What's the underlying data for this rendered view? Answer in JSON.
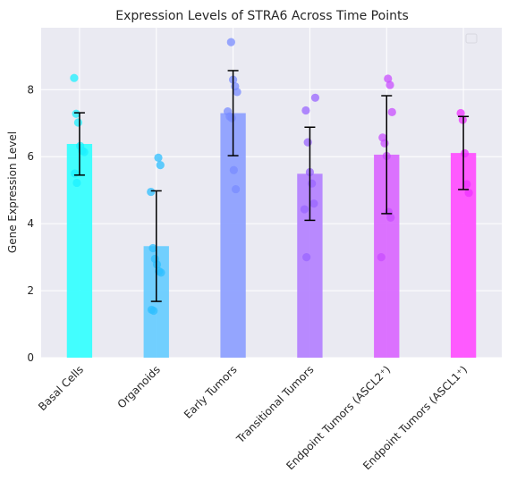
{
  "chart_data": {
    "type": "bar",
    "title": "Expression Levels of STRA6 Across Time Points",
    "xlabel": "",
    "ylabel": "Gene Expression Level",
    "ylim": [
      0,
      9.85
    ],
    "yticks": [
      0,
      2,
      4,
      6,
      8
    ],
    "grid": true,
    "legend": {
      "placement": "top-right",
      "entries": []
    },
    "categories": [
      "Basal Cells",
      "Organoids",
      "Early Tumors",
      "Transitional Tumors",
      "Endpoint Tumors (ASCL2⁺)",
      "Endpoint Tumors (ASCL1⁺)"
    ],
    "values": [
      6.38,
      3.33,
      7.3,
      5.49,
      6.06,
      6.11
    ],
    "error": [
      0.93,
      1.65,
      1.27,
      1.39,
      1.76,
      1.09
    ],
    "colors": [
      "#33ffff",
      "#66ccff",
      "#8c9eff",
      "#b380ff",
      "#d966ff",
      "#ff4dff"
    ],
    "point_colors": [
      "#1ef0ff",
      "#2fbfff",
      "#7a8cff",
      "#9966ff",
      "#c84dff",
      "#ee33ff"
    ],
    "points": [
      [
        8.35,
        7.28,
        7.02,
        6.32,
        6.18,
        6.14,
        5.5,
        5.22
      ],
      [
        5.97,
        5.75,
        4.95,
        3.27,
        2.95,
        2.78,
        2.58,
        2.54,
        1.43,
        1.4
      ],
      [
        9.42,
        8.3,
        8.1,
        7.93,
        7.35,
        7.2,
        7.15,
        5.6,
        5.03
      ],
      [
        7.76,
        7.38,
        6.43,
        5.54,
        5.2,
        4.6,
        4.43,
        3.0
      ],
      [
        8.33,
        8.14,
        7.33,
        6.57,
        6.4,
        6.02,
        4.35,
        4.18,
        3.0
      ],
      [
        7.3,
        7.1,
        6.1,
        5.18,
        4.92
      ]
    ]
  }
}
